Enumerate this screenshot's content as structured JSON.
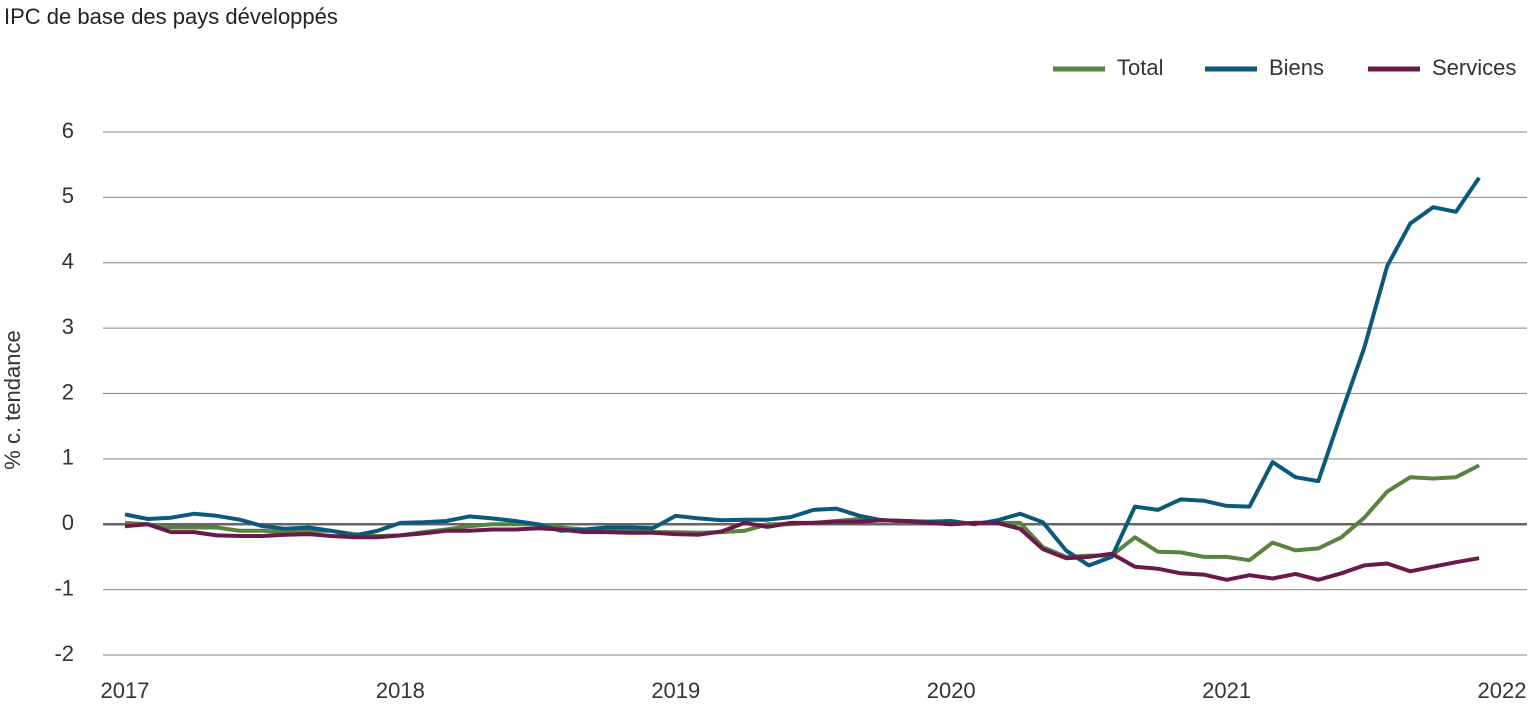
{
  "chart_data": {
    "type": "line",
    "title": "IPC de base des pays développés",
    "y_label": "% c. tendance",
    "x": [
      2017,
      2017.083,
      2017.167,
      2017.25,
      2017.333,
      2017.417,
      2017.5,
      2017.583,
      2017.667,
      2017.75,
      2017.833,
      2017.917,
      2018,
      2018.083,
      2018.167,
      2018.25,
      2018.333,
      2018.417,
      2018.5,
      2018.583,
      2018.667,
      2018.75,
      2018.833,
      2018.917,
      2019,
      2019.083,
      2019.167,
      2019.25,
      2019.333,
      2019.417,
      2019.5,
      2019.583,
      2019.667,
      2019.75,
      2019.833,
      2019.917,
      2020,
      2020.083,
      2020.167,
      2020.25,
      2020.333,
      2020.417,
      2020.5,
      2020.583,
      2020.667,
      2020.75,
      2020.833,
      2020.917,
      2021,
      2021.083,
      2021.167,
      2021.25,
      2021.333,
      2021.417,
      2021.5,
      2021.583,
      2021.667,
      2021.75,
      2021.833,
      2021.917
    ],
    "series": [
      {
        "name": "Total",
        "color": "#5b8340",
        "values": [
          0.02,
          0.0,
          -0.05,
          -0.05,
          -0.05,
          -0.1,
          -0.1,
          -0.12,
          -0.1,
          -0.1,
          -0.15,
          -0.18,
          -0.17,
          -0.12,
          -0.08,
          -0.03,
          0.0,
          0.0,
          0.0,
          -0.05,
          -0.08,
          -0.08,
          -0.1,
          -0.12,
          -0.12,
          -0.13,
          -0.12,
          -0.1,
          0.0,
          0.0,
          0.02,
          0.05,
          0.08,
          0.06,
          0.05,
          0.03,
          0.0,
          0.02,
          0.02,
          0.02,
          -0.35,
          -0.5,
          -0.48,
          -0.48,
          -0.2,
          -0.42,
          -0.43,
          -0.5,
          -0.5,
          -0.55,
          -0.28,
          -0.4,
          -0.37,
          -0.2,
          0.1,
          0.5,
          0.72,
          0.7,
          0.72,
          0.9
        ]
      },
      {
        "name": "Biens",
        "color": "#0b5a7e",
        "values": [
          0.15,
          0.08,
          0.1,
          0.16,
          0.13,
          0.07,
          -0.03,
          -0.07,
          -0.05,
          -0.1,
          -0.17,
          -0.1,
          0.02,
          0.03,
          0.05,
          0.12,
          0.09,
          0.05,
          0.0,
          -0.1,
          -0.08,
          -0.05,
          -0.05,
          -0.06,
          0.13,
          0.09,
          0.06,
          0.07,
          0.07,
          0.11,
          0.22,
          0.24,
          0.13,
          0.06,
          0.05,
          0.04,
          0.05,
          0.0,
          0.06,
          0.16,
          0.03,
          -0.4,
          -0.63,
          -0.5,
          0.27,
          0.22,
          0.38,
          0.36,
          0.28,
          0.27,
          0.95,
          0.72,
          0.66,
          1.7,
          2.7,
          3.95,
          4.6,
          4.85,
          4.78,
          5.3
        ]
      },
      {
        "name": "Services",
        "color": "#6a1a4a",
        "values": [
          -0.03,
          0.0,
          -0.12,
          -0.12,
          -0.17,
          -0.18,
          -0.18,
          -0.16,
          -0.15,
          -0.18,
          -0.2,
          -0.2,
          -0.17,
          -0.14,
          -0.1,
          -0.1,
          -0.08,
          -0.08,
          -0.06,
          -0.08,
          -0.12,
          -0.12,
          -0.13,
          -0.13,
          -0.15,
          -0.16,
          -0.11,
          0.02,
          -0.04,
          0.02,
          0.02,
          0.04,
          0.04,
          0.06,
          0.05,
          0.02,
          0.0,
          0.02,
          0.02,
          -0.07,
          -0.38,
          -0.52,
          -0.5,
          -0.45,
          -0.65,
          -0.68,
          -0.75,
          -0.77,
          -0.85,
          -0.78,
          -0.83,
          -0.76,
          -0.85,
          -0.75,
          -0.63,
          -0.6,
          -0.72,
          -0.65,
          -0.58,
          -0.52
        ]
      }
    ],
    "xlim": [
      2017,
      2022
    ],
    "xticks": [
      2017,
      2018,
      2019,
      2020,
      2021,
      2022
    ],
    "ylim": [
      -2,
      6
    ],
    "yticks": [
      -2,
      -1,
      0,
      1,
      2,
      3,
      4,
      5,
      6
    ],
    "grid": true,
    "legend": "top-right"
  }
}
